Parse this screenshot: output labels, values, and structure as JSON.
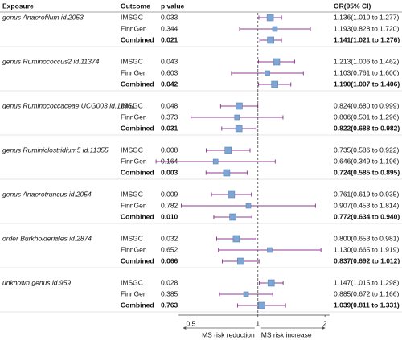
{
  "chart_data": {
    "type": "forest",
    "headers": {
      "exposure": "Exposure",
      "outcome": "Outcome",
      "p": "p value",
      "or": "OR(95% CI)"
    },
    "xlim": [
      0.44,
      2.1
    ],
    "xticks": [
      0.5,
      1,
      2
    ],
    "log_scale": true,
    "reference": 1,
    "x_label_left": "MS risk reduction",
    "x_label_right": "MS risk increase",
    "marker_color": "#7ea6d4",
    "whisker_color": "#8e3c93",
    "groups": [
      {
        "exposure": "genus Anaerofilum id.2053",
        "rows": [
          {
            "outcome": "IMSGC",
            "p": "0.033",
            "or": 1.136,
            "lo": 1.01,
            "hi": 1.277,
            "or_label": "1.136(1.010 to 1.277)"
          },
          {
            "outcome": "FinnGen",
            "p": "0.344",
            "or": 1.193,
            "lo": 0.828,
            "hi": 1.72,
            "or_label": "1.193(0.828 to 1.720)"
          },
          {
            "outcome": "Combined",
            "p": "0.021",
            "or": 1.141,
            "lo": 1.021,
            "hi": 1.276,
            "or_label": "1.141(1.021 to 1.276)"
          }
        ]
      },
      {
        "exposure": "genus Ruminococcus2 id.11374",
        "rows": [
          {
            "outcome": "IMSGC",
            "p": "0.043",
            "or": 1.213,
            "lo": 1.006,
            "hi": 1.462,
            "or_label": "1.213(1.006 to 1.462)"
          },
          {
            "outcome": "FinnGen",
            "p": "0.603",
            "or": 1.103,
            "lo": 0.761,
            "hi": 1.6,
            "or_label": "1.103(0.761 to 1.600)"
          },
          {
            "outcome": "Combined",
            "p": "0.042",
            "or": 1.19,
            "lo": 1.007,
            "hi": 1.406,
            "or_label": "1.190(1.007 to 1.406)"
          }
        ]
      },
      {
        "exposure": "genus Ruminococcaceae UCG003 id.11361",
        "rows": [
          {
            "outcome": "IMSGC",
            "p": "0.048",
            "or": 0.824,
            "lo": 0.68,
            "hi": 0.999,
            "or_label": "0.824(0.680 to 0.999)"
          },
          {
            "outcome": "FinnGen",
            "p": "0.373",
            "or": 0.806,
            "lo": 0.501,
            "hi": 1.296,
            "or_label": "0.806(0.501 to 1.296)"
          },
          {
            "outcome": "Combined",
            "p": "0.031",
            "or": 0.822,
            "lo": 0.688,
            "hi": 0.982,
            "or_label": "0.822(0.688 to 0.982)"
          }
        ]
      },
      {
        "exposure": "genus Ruminiclostridium5 id.11355",
        "rows": [
          {
            "outcome": "IMSGC",
            "p": "0.008",
            "or": 0.735,
            "lo": 0.586,
            "hi": 0.922,
            "or_label": "0.735(0.586 to 0.922)"
          },
          {
            "outcome": "FinnGen",
            "p": "0.164",
            "or": 0.646,
            "lo": 0.349,
            "hi": 1.196,
            "or_label": "0.646(0.349 to 1.196)"
          },
          {
            "outcome": "Combined",
            "p": "0.003",
            "or": 0.724,
            "lo": 0.585,
            "hi": 0.895,
            "or_label": "0.724(0.585 to 0.895)"
          }
        ]
      },
      {
        "exposure": "genus Anaerotruncus id.2054",
        "rows": [
          {
            "outcome": "IMSGC",
            "p": "0.009",
            "or": 0.761,
            "lo": 0.619,
            "hi": 0.935,
            "or_label": "0.761(0.619 to 0.935)"
          },
          {
            "outcome": "FinnGen",
            "p": "0.782",
            "or": 0.907,
            "lo": 0.453,
            "hi": 1.814,
            "or_label": "0.907(0.453 to 1.814)"
          },
          {
            "outcome": "Combined",
            "p": "0.010",
            "or": 0.772,
            "lo": 0.634,
            "hi": 0.94,
            "or_label": "0.772(0.634 to 0.940)"
          }
        ]
      },
      {
        "exposure": "order Burkholderiales id.2874",
        "rows": [
          {
            "outcome": "IMSGC",
            "p": "0.032",
            "or": 0.8,
            "lo": 0.653,
            "hi": 0.981,
            "or_label": "0.800(0.653 to 0.981)"
          },
          {
            "outcome": "FinnGen",
            "p": "0.652",
            "or": 1.13,
            "lo": 0.665,
            "hi": 1.919,
            "or_label": "1.130(0.665 to 1.919)"
          },
          {
            "outcome": "Combined",
            "p": "0.066",
            "or": 0.837,
            "lo": 0.692,
            "hi": 1.012,
            "or_label": "0.837(0.692 to 1.012)"
          }
        ]
      },
      {
        "exposure": "unknown genus id.959",
        "rows": [
          {
            "outcome": "IMSGC",
            "p": "0.028",
            "or": 1.147,
            "lo": 1.015,
            "hi": 1.298,
            "or_label": "1.147(1.015 to 1.298)"
          },
          {
            "outcome": "FinnGen",
            "p": "0.385",
            "or": 0.885,
            "lo": 0.672,
            "hi": 1.166,
            "or_label": "0.885(0.672 to 1.166)"
          },
          {
            "outcome": "Combined",
            "p": "0.763",
            "or": 1.039,
            "lo": 0.811,
            "hi": 1.331,
            "or_label": "1.039(0.811 to 1.331)"
          }
        ]
      }
    ]
  }
}
